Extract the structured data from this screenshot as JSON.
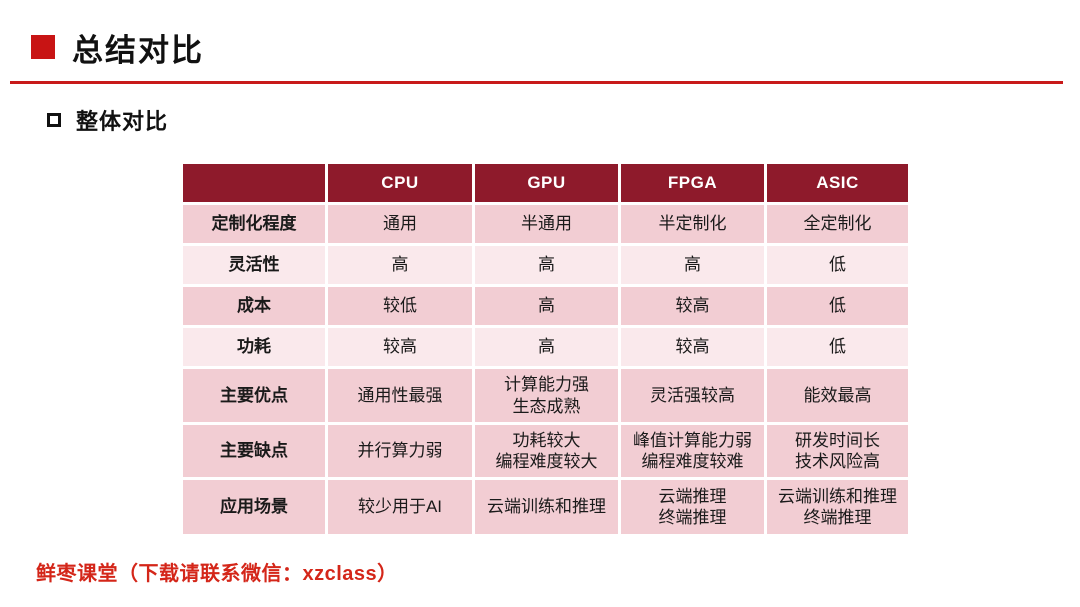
{
  "theme": {
    "header_bg": "#8E1A2B",
    "row_dark": "#F2CDD3",
    "row_light": "#FAE9EC",
    "accent_red": "#C81414",
    "line_red": "#C81A1A",
    "footer_red": "#D42619",
    "text_color": "#1A1A1A"
  },
  "title": "总结对比",
  "subtitle": "整体对比",
  "table": {
    "corner": "",
    "columns": [
      "CPU",
      "GPU",
      "FPGA",
      "ASIC"
    ],
    "rows": [
      {
        "label": "定制化程度",
        "values": [
          "通用",
          "半通用",
          "半定制化",
          "全定制化"
        ]
      },
      {
        "label": "灵活性",
        "values": [
          "高",
          "高",
          "高",
          "低"
        ]
      },
      {
        "label": "成本",
        "values": [
          "较低",
          "高",
          "较高",
          "低"
        ]
      },
      {
        "label": "功耗",
        "values": [
          "较高",
          "高",
          "较高",
          "低"
        ]
      },
      {
        "label": "主要优点",
        "values": [
          "通用性最强",
          "计算能力强\n生态成熟",
          "灵活强较高",
          "能效最高"
        ]
      },
      {
        "label": "主要缺点",
        "values": [
          "并行算力弱",
          "功耗较大\n编程难度较大",
          "峰值计算能力弱\n编程难度较难",
          "研发时间长\n技术风险高"
        ]
      },
      {
        "label": "应用场景",
        "values": [
          "较少用于AI",
          "云端训练和推理",
          "云端推理\n终端推理",
          "云端训练和推理\n终端推理"
        ]
      }
    ]
  },
  "footer": "鲜枣课堂（下载请联系微信：xzclass）"
}
